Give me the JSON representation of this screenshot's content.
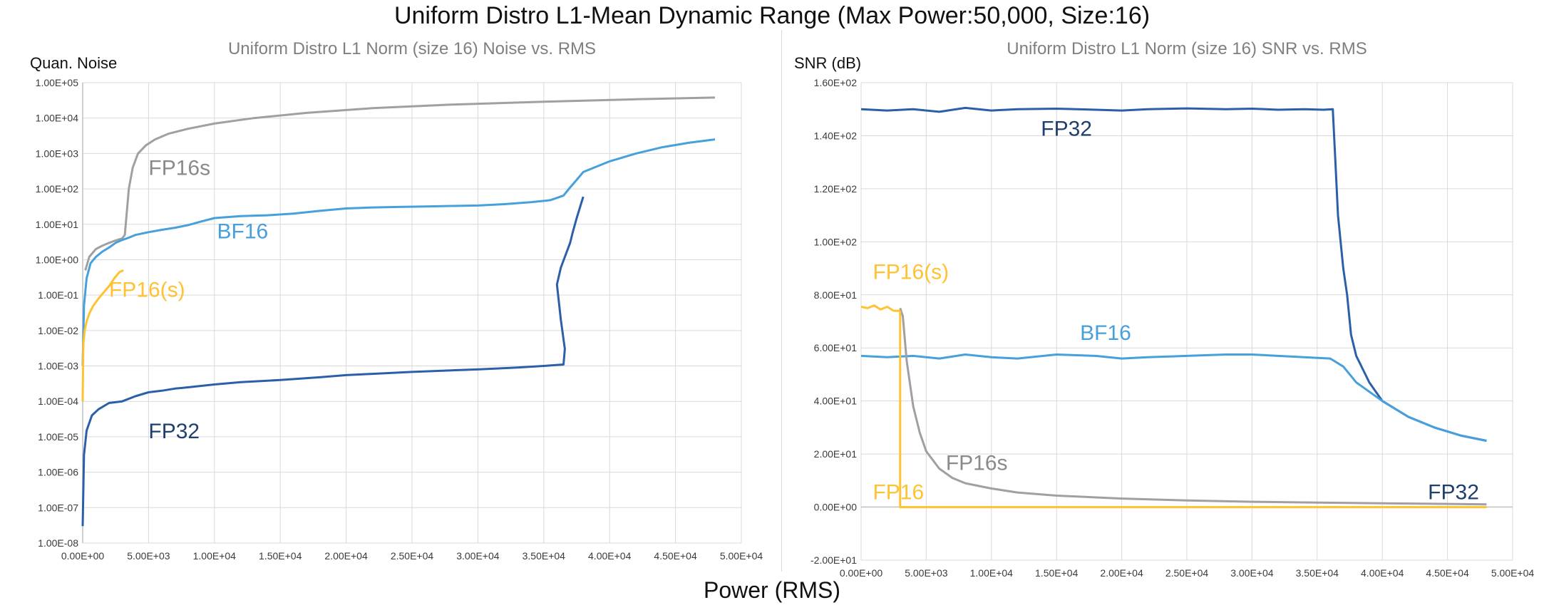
{
  "title": "Uniform Distro L1-Mean Dynamic Range (Max Power:50,000, Size:16)",
  "xlabel": "Power (RMS)",
  "colors": {
    "fp32": "#2b5faa",
    "bf16": "#45a0dc",
    "fp16s": "#a0a0a0",
    "fp16_s": "#ffc232",
    "fp16": "#ffc232",
    "grid": "#d9d9d9",
    "axis_text": "#3a3a3a",
    "subtitle": "#7f7f7f"
  },
  "chart_data": [
    {
      "type": "line",
      "title": "Uniform Distro L1 Norm (size 16) Noise vs. RMS",
      "ylabel": "Quan. Noise",
      "yscale": "log",
      "xlim": [
        0,
        50000
      ],
      "ylim": [
        1e-08,
        100000.0
      ],
      "x_ticks": [
        "0.00E+00",
        "5.00E+03",
        "1.00E+04",
        "1.50E+04",
        "2.00E+04",
        "2.50E+04",
        "3.00E+04",
        "3.50E+04",
        "4.00E+04",
        "4.50E+04",
        "5.00E+04"
      ],
      "y_ticks": [
        "1.00E-08",
        "1.00E-07",
        "1.00E-06",
        "1.00E-05",
        "1.00E-04",
        "1.00E-03",
        "1.00E-02",
        "1.00E-01",
        "1.00E+00",
        "1.00E+01",
        "1.00E+02",
        "1.00E+03",
        "1.00E+04",
        "1.00E+05"
      ],
      "series": [
        {
          "key": "fp16s",
          "label": "FP16s",
          "x": [
            200,
            500,
            1000,
            1500,
            2000,
            2500,
            3000,
            3200,
            3500,
            3800,
            4200,
            4800,
            5500,
            6500,
            8000,
            10000,
            13000,
            17000,
            22000,
            28000,
            35000,
            42000,
            48000
          ],
          "y": [
            0.5,
            1.2,
            2,
            2.5,
            3,
            3.5,
            4,
            5,
            100,
            400,
            1000,
            1700,
            2500,
            3600,
            5000,
            7000,
            10000,
            14000,
            19000,
            24000,
            29000,
            34000,
            38000
          ]
        },
        {
          "key": "bf16",
          "label": "BF16",
          "x": [
            0,
            100,
            300,
            600,
            1000,
            1500,
            2000,
            2500,
            3000,
            3500,
            4000,
            5000,
            6000,
            7000,
            8000,
            9000,
            10000,
            12000,
            14000,
            16000,
            18000,
            20000,
            22000,
            24000,
            26000,
            28000,
            30000,
            32000,
            34000,
            35500,
            36500,
            37000,
            37500,
            38000,
            40000,
            42000,
            44000,
            46000,
            48000
          ],
          "y": [
            0.001,
            0.05,
            0.3,
            0.8,
            1.2,
            1.7,
            2.2,
            3,
            3.6,
            4.2,
            5,
            6,
            7,
            8,
            9.5,
            12,
            15,
            17,
            18,
            20,
            24,
            28,
            30,
            31,
            32,
            33,
            34,
            37,
            42,
            48,
            65,
            110,
            180,
            300,
            600,
            1000,
            1500,
            2000,
            2500
          ]
        },
        {
          "key": "fp16_s",
          "label": "FP16(s)",
          "x": [
            0,
            50,
            150,
            300,
            500,
            800,
            1200,
            1600,
            2000,
            2400,
            2800,
            3100
          ],
          "y": [
            0.0001,
            0.004,
            0.01,
            0.018,
            0.03,
            0.05,
            0.08,
            0.12,
            0.18,
            0.3,
            0.45,
            0.5
          ]
        },
        {
          "key": "fp32",
          "label": "FP32",
          "x": [
            0,
            100,
            300,
            700,
            1200,
            2000,
            3000,
            4000,
            5000,
            6000,
            7000,
            8000,
            10000,
            12000,
            15000,
            18000,
            20000,
            22000,
            25000,
            28000,
            30000,
            33000,
            35000,
            36500,
            36600,
            36300,
            36000,
            36300,
            36700,
            37000,
            37200,
            37500,
            38000
          ],
          "y": [
            3e-08,
            3e-06,
            1.5e-05,
            4e-05,
            6e-05,
            9e-05,
            0.0001,
            0.00014,
            0.00018,
            0.0002,
            0.00023,
            0.00025,
            0.0003,
            0.00035,
            0.0004,
            0.00048,
            0.00055,
            0.0006,
            0.00068,
            0.00075,
            0.0008,
            0.0009,
            0.001,
            0.0011,
            0.003,
            0.02,
            0.2,
            0.6,
            1.5,
            3,
            6,
            15,
            60
          ]
        }
      ],
      "labels": [
        {
          "text": "FP16s",
          "key": "fp16s",
          "x": 5000,
          "y": 250
        },
        {
          "text": "BF16",
          "key": "bf16",
          "x": 10200,
          "y": 4
        },
        {
          "text": "FP16(s)",
          "key": "fp16_s",
          "x": 2000,
          "y": 0.09
        },
        {
          "text": "FP32",
          "key": "fp32",
          "x": 5000,
          "y": 9e-06
        }
      ]
    },
    {
      "type": "line",
      "title": "Uniform Distro L1 Norm (size 16) SNR vs. RMS",
      "ylabel": "SNR (dB)",
      "yscale": "linear",
      "xlim": [
        0,
        50000
      ],
      "ylim": [
        -20,
        160
      ],
      "x_ticks": [
        "0.00E+00",
        "5.00E+03",
        "1.00E+04",
        "1.50E+04",
        "2.00E+04",
        "2.50E+04",
        "3.00E+04",
        "3.50E+04",
        "4.00E+04",
        "4.50E+04",
        "5.00E+04"
      ],
      "y_ticks": [
        "-2.00E+01",
        "0.00E+00",
        "2.00E+01",
        "4.00E+01",
        "6.00E+01",
        "8.00E+01",
        "1.00E+02",
        "1.20E+02",
        "1.40E+02",
        "1.60E+02"
      ],
      "y_tick_values": [
        -20,
        0,
        20,
        40,
        60,
        80,
        100,
        120,
        140,
        160
      ],
      "series": [
        {
          "key": "fp32",
          "label": "FP32",
          "x": [
            0,
            2000,
            4000,
            6000,
            8000,
            10000,
            12000,
            15000,
            18000,
            20000,
            22000,
            25000,
            28000,
            30000,
            32000,
            34000,
            35500,
            36200,
            36400,
            36600,
            36800,
            37000,
            37300,
            37600,
            38000,
            38500,
            39000,
            40000,
            42000,
            44000,
            46000,
            48000
          ],
          "y": [
            150,
            149.5,
            150,
            149,
            150.5,
            149.5,
            150,
            150.2,
            149.8,
            149.5,
            150,
            150.3,
            150,
            150.2,
            149.8,
            150,
            149.8,
            150,
            130,
            110,
            100,
            90,
            80,
            65,
            57,
            52,
            47,
            40,
            34,
            30,
            27,
            25
          ]
        },
        {
          "key": "bf16",
          "label": "BF16",
          "x": [
            0,
            2000,
            4000,
            6000,
            8000,
            10000,
            12000,
            15000,
            18000,
            20000,
            22000,
            25000,
            28000,
            30000,
            32000,
            34000,
            36000,
            37000,
            38000,
            40000,
            42000,
            44000,
            46000,
            48000
          ],
          "y": [
            57,
            56.5,
            57,
            56,
            57.5,
            56.5,
            56,
            57.5,
            57,
            56,
            56.5,
            57,
            57.5,
            57.5,
            57,
            56.5,
            56,
            53,
            47,
            40,
            34,
            30,
            27,
            25
          ]
        },
        {
          "key": "fp16s",
          "label": "FP16s",
          "x": [
            3000,
            3200,
            3500,
            4000,
            4500,
            5000,
            6000,
            7000,
            8000,
            10000,
            12000,
            15000,
            20000,
            25000,
            30000,
            35000,
            40000,
            45000,
            48000
          ],
          "y": [
            75,
            72,
            55,
            38,
            28,
            21,
            14.5,
            11,
            9,
            7,
            5.5,
            4.3,
            3.2,
            2.5,
            2,
            1.7,
            1.4,
            1.2,
            1
          ]
        },
        {
          "key": "fp16_s",
          "label": "FP16(s)",
          "x": [
            0,
            500,
            1000,
            1500,
            2000,
            2500,
            2900,
            3000
          ],
          "y": [
            75.5,
            75,
            76,
            74.5,
            75.5,
            74,
            74,
            74
          ]
        },
        {
          "key": "fp16",
          "label": "FP16",
          "x": [
            3000,
            3000,
            48000
          ],
          "y": [
            74,
            0,
            0
          ]
        }
      ],
      "labels": [
        {
          "text": "FP32",
          "key": "fp32",
          "x": 13800,
          "y": 140
        },
        {
          "text": "FP16(s)",
          "key": "fp16_s",
          "x": 900,
          "y": 86
        },
        {
          "text": "BF16",
          "key": "bf16",
          "x": 16800,
          "y": 63
        },
        {
          "text": "FP16s",
          "key": "fp16s",
          "x": 6500,
          "y": 14
        },
        {
          "text": "FP16",
          "key": "fp16",
          "x": 900,
          "y": 3
        },
        {
          "text": "FP32",
          "key": "fp32",
          "x": 43500,
          "y": 3
        }
      ]
    }
  ]
}
